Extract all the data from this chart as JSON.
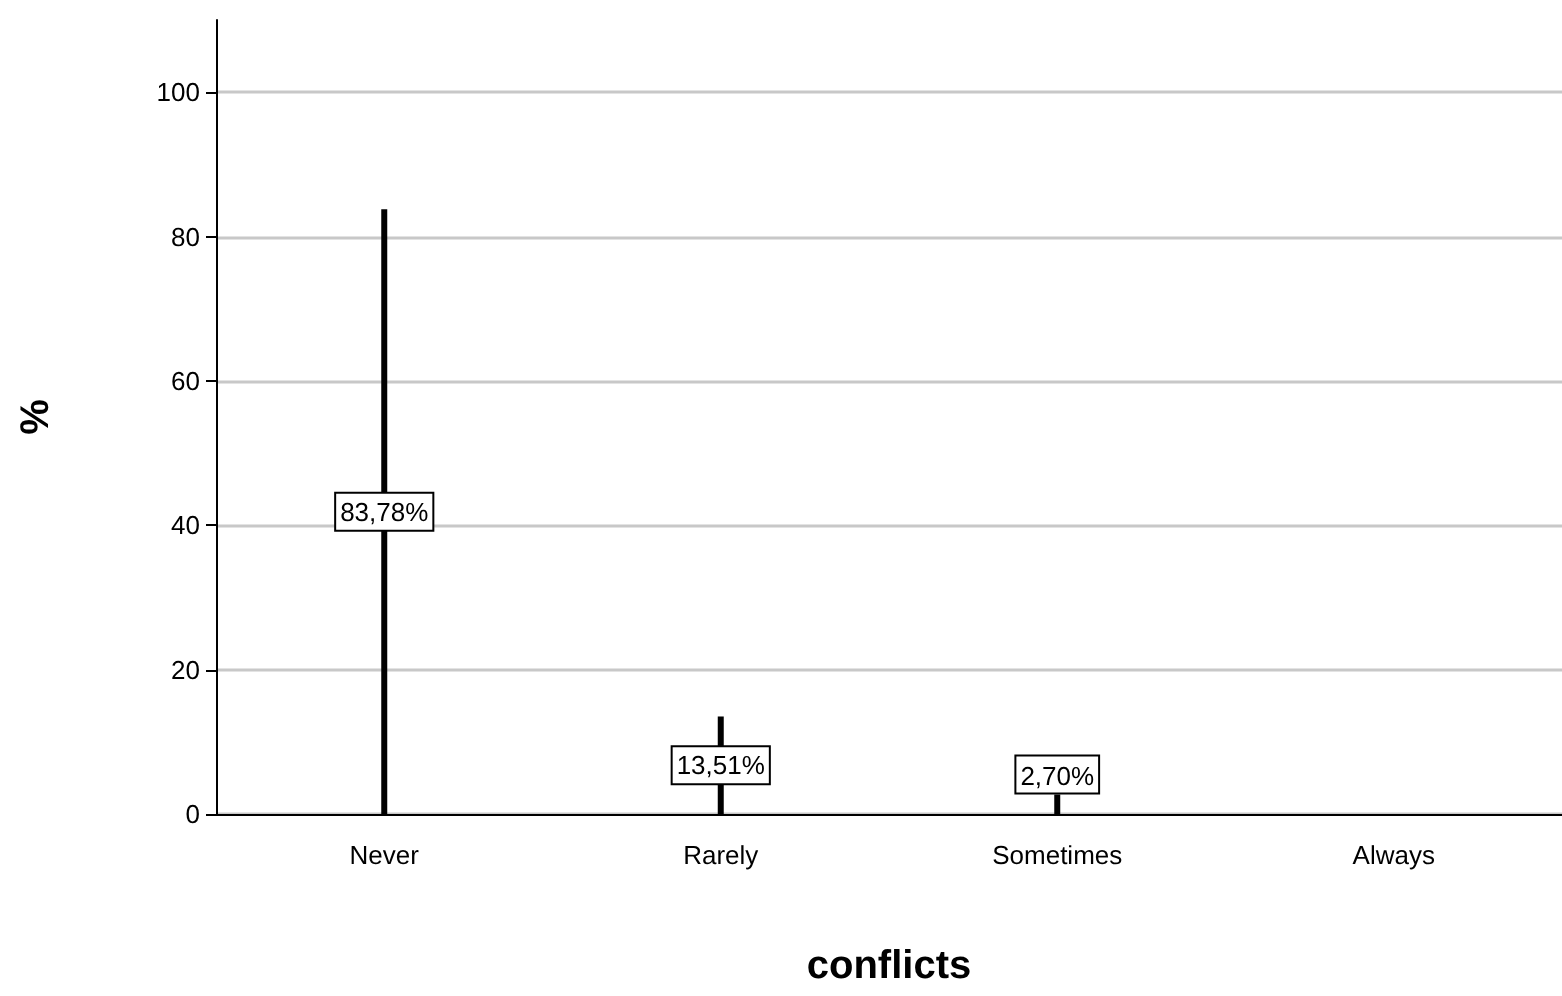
{
  "chart_data": {
    "type": "bar",
    "xlabel": "conflicts",
    "ylabel": "%",
    "categories": [
      "Never",
      "Rarely",
      "Sometimes",
      "Always"
    ],
    "values": [
      83.78,
      13.51,
      2.7,
      0
    ],
    "value_labels": [
      "83,78%",
      "13,51%",
      "2,70%",
      null
    ],
    "color": "#000000",
    "ylim": [
      0,
      110
    ],
    "yticks": [
      0,
      20,
      40,
      60,
      80,
      100
    ],
    "grid": "y"
  }
}
